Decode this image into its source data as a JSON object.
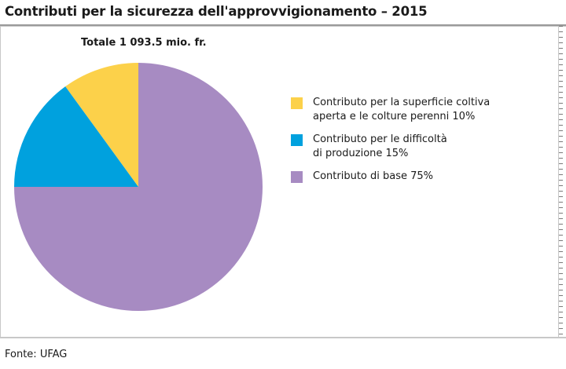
{
  "title": "Contributi per la sicurezza dell'approvvigionamento – 2015",
  "source": "Fonte: UFAG",
  "chart_data": {
    "type": "pie",
    "subtitle": "Totale 1 093.5 mio. fr.",
    "slices": [
      {
        "label": "Contributo per la superficie coltiva aperta e le colture perenni 10%",
        "label_lines": [
          "Contributo per la superficie coltiva",
          "aperta e le colture perenni 10%"
        ],
        "value": 10,
        "color": "#fcd14a"
      },
      {
        "label": "Contributo per le difficoltà di produzione 15%",
        "label_lines": [
          "Contributo per le difficoltà",
          "di produzione 15%"
        ],
        "value": 15,
        "color": "#00a1de"
      },
      {
        "label": "Contributo di base 75%",
        "label_lines": [
          "Contributo di base 75%"
        ],
        "value": 75,
        "color": "#a78bc2"
      }
    ],
    "start": "12 o'clock",
    "direction": "counterclockwise",
    "legend_position": "right"
  }
}
